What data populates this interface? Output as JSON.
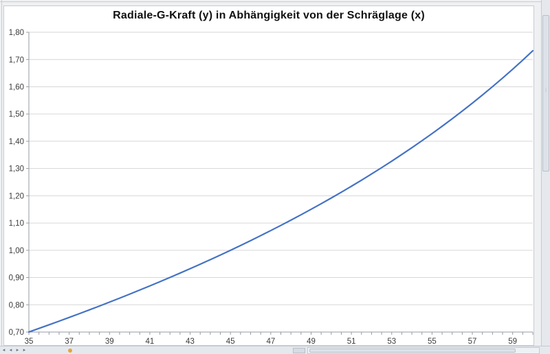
{
  "chart_data": {
    "type": "line",
    "title": "Radiale-G-Kraft (y) in Abhängigkeit von der Schräglage (x)",
    "xlabel": "",
    "ylabel": "",
    "xlim": [
      35,
      60
    ],
    "ylim": [
      0.7,
      1.8
    ],
    "y_step": 0.1,
    "x_minor_tick_step": 0.5,
    "grid": "horizontal",
    "legend": "none",
    "x_tick_values": [
      35,
      37,
      39,
      41,
      43,
      45,
      47,
      49,
      51,
      53,
      55,
      57,
      59
    ],
    "x_tick_labels": [
      "35",
      "37",
      "39",
      "41",
      "43",
      "45",
      "47",
      "49",
      "51",
      "53",
      "55",
      "57",
      "59"
    ],
    "y_tick_values": [
      0.7,
      0.8,
      0.9,
      1.0,
      1.1,
      1.2,
      1.3,
      1.4,
      1.5,
      1.6,
      1.7,
      1.8
    ],
    "y_tick_labels": [
      "0,70",
      "0,80",
      "0,90",
      "1,00",
      "1,10",
      "1,20",
      "1,30",
      "1,40",
      "1,50",
      "1,60",
      "1,70",
      "1,80"
    ],
    "series": [
      {
        "name": "Radiale-G-Kraft",
        "x": [
          35,
          35.5,
          36,
          36.5,
          37,
          37.5,
          38,
          38.5,
          39,
          39.5,
          40,
          40.5,
          41,
          41.5,
          42,
          42.5,
          43,
          43.5,
          44,
          44.5,
          45,
          45.5,
          46,
          46.5,
          47,
          47.5,
          48,
          48.5,
          49,
          49.5,
          50,
          50.5,
          51,
          51.5,
          52,
          52.5,
          53,
          53.5,
          54,
          54.5,
          55,
          55.5,
          56,
          56.5,
          57,
          57.5,
          58,
          58.5,
          59,
          59.5,
          60
        ],
        "values": [
          0.7002,
          0.7133,
          0.7265,
          0.74,
          0.7536,
          0.7673,
          0.7813,
          0.7954,
          0.8098,
          0.8243,
          0.8391,
          0.8541,
          0.8693,
          0.8847,
          0.9004,
          0.9163,
          0.9325,
          0.949,
          0.9657,
          0.9827,
          1.0,
          1.0176,
          1.0355,
          1.0538,
          1.0724,
          1.0913,
          1.1106,
          1.1303,
          1.1504,
          1.1708,
          1.1918,
          1.2131,
          1.2349,
          1.2572,
          1.2799,
          1.3032,
          1.327,
          1.3514,
          1.3764,
          1.4019,
          1.4281,
          1.455,
          1.4826,
          1.5108,
          1.5399,
          1.5697,
          1.6003,
          1.6319,
          1.6643,
          1.6977,
          1.7321
        ]
      }
    ],
    "colors": {
      "line": "#4472c4",
      "gridline": "#d6d6d6",
      "axis": "#969ba3",
      "tick_label": "#3b3b3b",
      "title": "#111111",
      "plot_background": "#ffffff"
    }
  },
  "icons": {
    "sheet_nav_first": "⏮",
    "sheet_nav_prev": "◀",
    "sheet_nav_next": "▶",
    "sheet_nav_last": "⏭",
    "vscroll_grip": "⁞"
  }
}
